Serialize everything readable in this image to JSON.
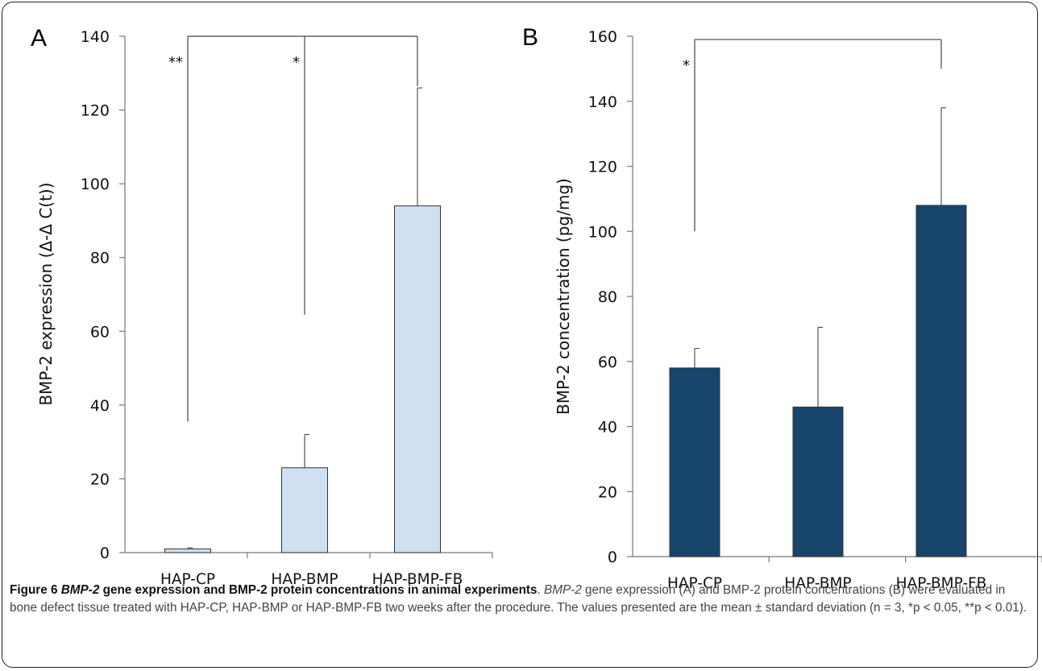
{
  "chart_data": [
    {
      "type": "bar",
      "panel": "A",
      "categories": [
        "HAP-CP",
        "HAP-BMP",
        "HAP-BMP-FB"
      ],
      "values": [
        1,
        23,
        94
      ],
      "errors": [
        0.3,
        9,
        32
      ],
      "ylabel": "BMP-2 expression (Δ-Δ C(t))",
      "ylim": [
        0,
        140
      ],
      "yticks": [
        0,
        20,
        40,
        60,
        80,
        100,
        120,
        140
      ],
      "bar_color": "#cfe0f1",
      "significance": [
        {
          "from": "HAP-CP",
          "to": "HAP-BMP-FB",
          "label": "**",
          "start": 35.5
        },
        {
          "from": "HAP-BMP",
          "to": "HAP-BMP-FB",
          "label": "*",
          "start": 64.5
        }
      ],
      "bracket_level": 140,
      "bracket_right_end": 126.5
    },
    {
      "type": "bar",
      "panel": "B",
      "categories": [
        "HAP-CP",
        "HAP-BMP",
        "HAP-BMP-FB"
      ],
      "values": [
        58,
        46,
        108
      ],
      "errors": [
        6,
        24.5,
        30
      ],
      "ylabel": "BMP-2 concentration (pg/mg)",
      "ylim": [
        0,
        160
      ],
      "yticks": [
        0,
        20,
        40,
        60,
        80,
        100,
        120,
        140,
        160
      ],
      "bar_color": "#17446b",
      "significance": [
        {
          "from": "HAP-CP",
          "to": "HAP-BMP-FB",
          "label": "*",
          "start": 100
        }
      ],
      "bracket_level": 159,
      "bracket_right_end": 150
    }
  ],
  "caption": {
    "figure_label": "Figure 6",
    "title_italic": "BMP-2",
    "title_rest": " gene expression and BMP-2 protein concentrations in animal experiments",
    "italic_gene": "BMP-2",
    "body_1": " gene expression (A) and BMP-2 protein concentrations (B) were evaluated in bone defect tissue treated with HAP-CP, HAP-BMP or HAP-BMP-FB two weeks after the procedure. The values presented are the mean ± standard deviation (n = 3, *p < 0.05, **p < 0.01)."
  }
}
